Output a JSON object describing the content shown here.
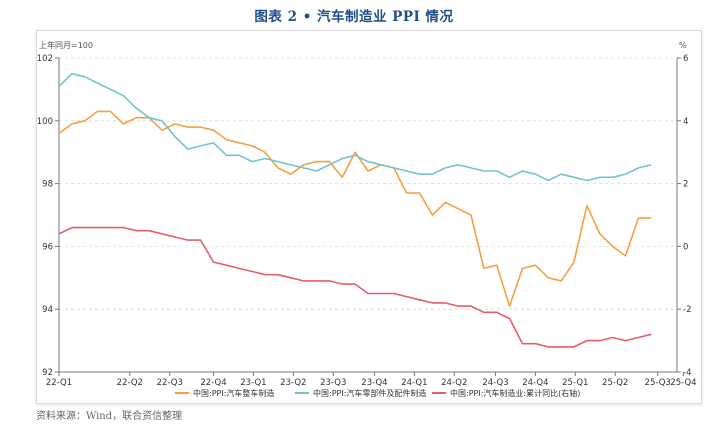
{
  "header": {
    "title": "图表 2 • 汽车制造业 PPI 情况"
  },
  "footer": {
    "source": "资料来源：Wind，联合资信整理"
  },
  "chart_data": {
    "type": "line",
    "title": "图表 2 • 汽车制造业 PPI 情况",
    "left_axis_label": "上年同月=100",
    "right_axis_label": "%",
    "ylim_left": [
      92,
      102
    ],
    "ylim_right": [
      -4,
      6
    ],
    "left_ticks": [
      92,
      94,
      96,
      98,
      100,
      102
    ],
    "right_ticks": [
      -4,
      -2,
      0,
      2,
      4,
      6
    ],
    "x_tick_labels": [
      "22-Q1",
      "22-Q2",
      "22-Q3",
      "22-Q4",
      "23-Q1",
      "23-Q2",
      "23-Q3",
      "23-Q4",
      "24-Q1",
      "24-Q2",
      "24-Q3",
      "24-Q4",
      "25-Q1",
      "25-Q2",
      "25-Q3",
      "25-Q4"
    ],
    "x_tick_index": [
      0,
      5.5,
      8.6,
      12.0,
      15.1,
      18.2,
      21.3,
      24.5,
      27.6,
      30.7,
      33.9,
      37.0,
      40.1,
      43.2,
      46.5,
      48.5
    ],
    "x_count": 49,
    "series": [
      {
        "name": "中国:PPI:汽车整车制造",
        "axis": "left",
        "color": "#f4a043",
        "values": [
          99.6,
          99.9,
          100.0,
          100.3,
          100.3,
          99.9,
          100.1,
          100.1,
          99.7,
          99.9,
          99.8,
          99.8,
          99.7,
          99.4,
          99.3,
          99.2,
          99.0,
          98.5,
          98.3,
          98.6,
          98.7,
          98.7,
          98.2,
          99.0,
          98.4,
          98.6,
          98.5,
          97.7,
          97.7,
          97.0,
          97.4,
          97.2,
          97.0,
          95.3,
          95.4,
          94.1,
          95.3,
          95.4,
          95.0,
          94.9,
          95.5,
          97.3,
          96.4,
          96.0,
          95.7,
          96.9,
          96.9
        ]
      },
      {
        "name": "中国:PPI:汽车零部件及配件制造",
        "axis": "left",
        "color": "#72c5cc",
        "values": [
          101.1,
          101.5,
          101.4,
          101.2,
          101.0,
          100.8,
          100.4,
          100.1,
          100.0,
          99.5,
          99.1,
          99.2,
          99.3,
          98.9,
          98.9,
          98.7,
          98.8,
          98.7,
          98.6,
          98.5,
          98.4,
          98.6,
          98.8,
          98.9,
          98.7,
          98.6,
          98.5,
          98.4,
          98.3,
          98.3,
          98.5,
          98.6,
          98.5,
          98.4,
          98.4,
          98.2,
          98.4,
          98.3,
          98.1,
          98.3,
          98.2,
          98.1,
          98.2,
          98.2,
          98.3,
          98.5,
          98.6
        ]
      },
      {
        "name": "中国:PPI:汽车制造业:累计同比(右轴)",
        "axis": "right",
        "color": "#e35f6b",
        "values": [
          0.4,
          0.6,
          0.6,
          0.6,
          0.6,
          0.6,
          0.5,
          0.5,
          0.4,
          0.3,
          0.2,
          0.2,
          -0.5,
          -0.6,
          -0.7,
          -0.8,
          -0.9,
          -0.9,
          -1.0,
          -1.1,
          -1.1,
          -1.1,
          -1.2,
          -1.2,
          -1.5,
          -1.5,
          -1.5,
          -1.6,
          -1.7,
          -1.8,
          -1.8,
          -1.9,
          -1.9,
          -2.1,
          -2.1,
          -2.3,
          -3.1,
          -3.1,
          -3.2,
          -3.2,
          -3.2,
          -3.0,
          -3.0,
          -2.9,
          -3.0,
          -2.9,
          -2.8
        ]
      }
    ]
  }
}
